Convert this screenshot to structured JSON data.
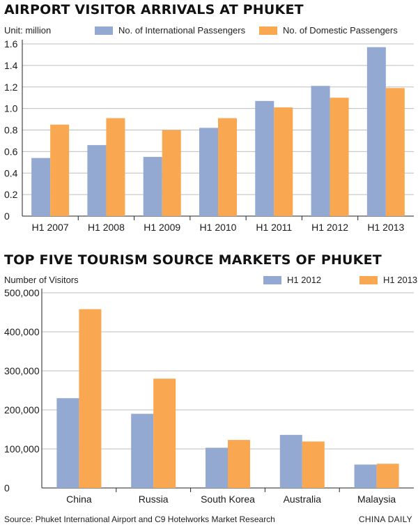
{
  "colors": {
    "series_a": "#93a9d1",
    "series_b": "#f9a750",
    "grid": "#bdbdbd",
    "axis": "#222222"
  },
  "chart_data": [
    {
      "type": "bar",
      "title": "AIRPORT VISITOR ARRIVALS AT PHUKET",
      "unit_label": "Unit: million",
      "categories": [
        "H1 2007",
        "H1 2008",
        "H1 2009",
        "H1 2010",
        "H1 2011",
        "H1 2012",
        "H1 2013"
      ],
      "series": [
        {
          "name": "No. of International Passengers",
          "values": [
            0.54,
            0.66,
            0.55,
            0.82,
            1.07,
            1.21,
            1.57
          ]
        },
        {
          "name": "No. of Domestic Passengers",
          "values": [
            0.85,
            0.91,
            0.8,
            0.91,
            1.01,
            1.1,
            1.19
          ]
        }
      ],
      "ylim": [
        0,
        1.6
      ],
      "yticks": [
        0,
        0.2,
        0.4,
        0.6,
        0.8,
        1.0,
        1.2,
        1.4,
        1.6
      ],
      "ytick_labels": [
        "0",
        "0.2",
        "0.4",
        "0.6",
        "0.8",
        "1.0",
        "1.2",
        "1.4",
        "1.6"
      ],
      "grid": true,
      "legend": "top-right"
    },
    {
      "type": "bar",
      "title": "TOP FIVE TOURISM SOURCE MARKETS OF PHUKET",
      "unit_label": "Number of Visitors",
      "categories": [
        "China",
        "Russia",
        "South Korea",
        "Australia",
        "Malaysia"
      ],
      "series": [
        {
          "name": "H1 2012",
          "values": [
            230000,
            190000,
            103000,
            136000,
            60000
          ]
        },
        {
          "name": "H1 2013",
          "values": [
            458000,
            280000,
            123000,
            119000,
            62000
          ]
        }
      ],
      "ylim": [
        0,
        500000
      ],
      "yticks": [
        0,
        100000,
        200000,
        300000,
        400000,
        500000
      ],
      "ytick_labels": [
        "0",
        "100,000",
        "200,000",
        "300,000",
        "400,000",
        "500,000"
      ],
      "grid": true,
      "legend": "top-right"
    }
  ],
  "footer": {
    "source": "Source: Phuket International Airport and C9 Hotelworks Market Research",
    "credit": "CHINA DAILY"
  }
}
